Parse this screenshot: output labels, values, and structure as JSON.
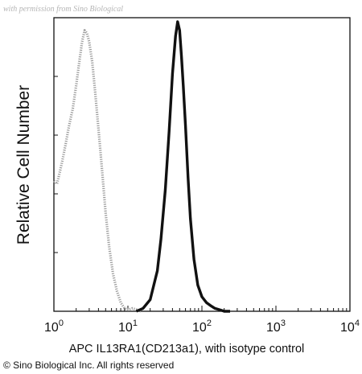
{
  "watermark": "with permission from Sino Biological",
  "copyright": "© Sino Biological Inc. All rights reserved",
  "chart_data": {
    "type": "line",
    "title": "",
    "xlabel": "APC  IL13RA1(CD213a1),  with isotype control",
    "ylabel": "Relative Cell Number",
    "x_scale": "log",
    "xlim": [
      1,
      10000
    ],
    "ylim": [
      0,
      1
    ],
    "x_tick_labels": [
      {
        "value": 1,
        "base": "10",
        "exp": "0"
      },
      {
        "value": 10,
        "base": "10",
        "exp": "1"
      },
      {
        "value": 100,
        "base": "10",
        "exp": "2"
      },
      {
        "value": 1000,
        "base": "10",
        "exp": "3"
      },
      {
        "value": 10000,
        "base": "10",
        "exp": "4"
      }
    ],
    "grid": false,
    "legend": "none",
    "series": [
      {
        "color": "#9a9a9a",
        "style": "dotted",
        "x": [
          1.0,
          1.1,
          1.2,
          1.3,
          1.45,
          1.6,
          1.8,
          2.0,
          2.2,
          2.4,
          2.6,
          2.8,
          3.0,
          3.3,
          3.6,
          4.0,
          4.5,
          5.0,
          5.6,
          6.3,
          7.1,
          8.0,
          9.0,
          10.0,
          11.5,
          13.0,
          15.0
        ],
        "y": [
          0.45,
          0.44,
          0.48,
          0.52,
          0.58,
          0.64,
          0.7,
          0.78,
          0.86,
          0.93,
          0.97,
          0.96,
          0.93,
          0.86,
          0.76,
          0.63,
          0.48,
          0.34,
          0.22,
          0.13,
          0.07,
          0.03,
          0.01,
          0.005,
          0.01,
          0.006,
          0.0
        ]
      },
      {
        "color": "#111111",
        "style": "solid",
        "x": [
          13,
          16,
          20,
          25,
          28,
          32,
          36,
          40,
          44,
          47,
          50,
          53,
          56,
          60,
          65,
          70,
          78,
          88,
          100,
          115,
          130,
          150,
          175,
          200,
          240
        ],
        "y": [
          0.0,
          0.01,
          0.04,
          0.14,
          0.25,
          0.42,
          0.62,
          0.82,
          0.95,
          1.0,
          0.97,
          0.88,
          0.78,
          0.64,
          0.46,
          0.32,
          0.18,
          0.09,
          0.05,
          0.03,
          0.02,
          0.01,
          0.005,
          0.0,
          0.0
        ]
      }
    ]
  }
}
